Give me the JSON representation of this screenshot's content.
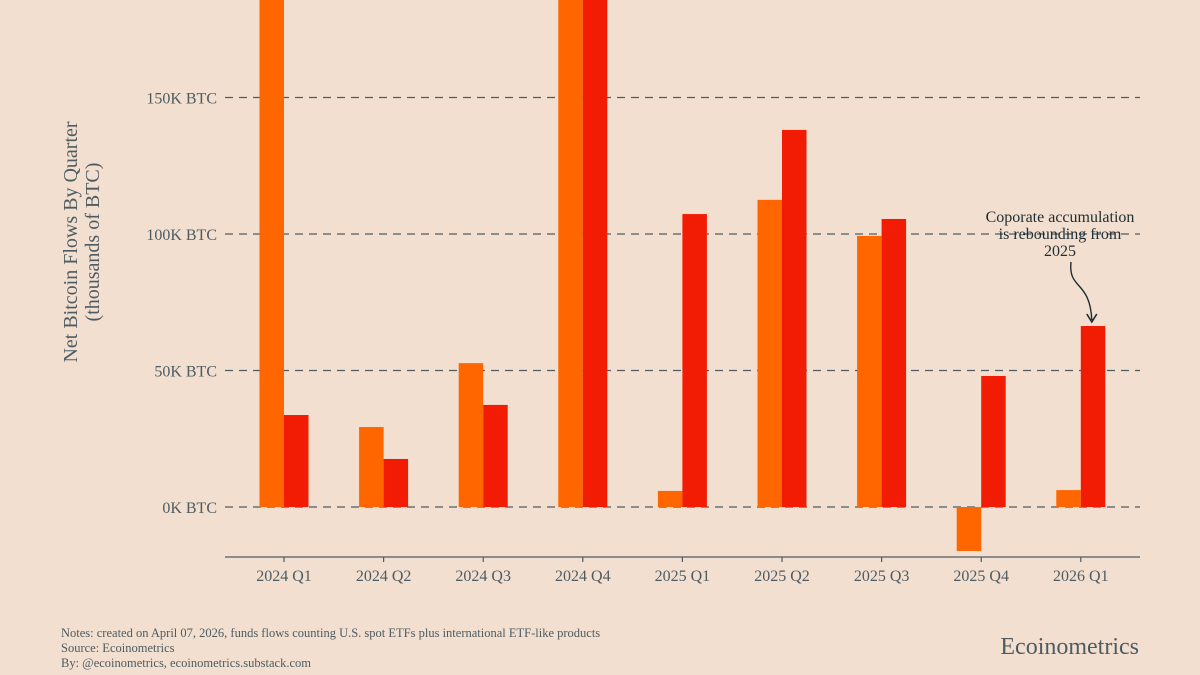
{
  "chart_data": {
    "type": "bar",
    "title": "",
    "ylabel": "Net Bitcoin Flows By Quarter",
    "ylabel_sub": "(thousands of BTC)",
    "xlabel": "",
    "categories": [
      "2024 Q1",
      "2024 Q2",
      "2024 Q3",
      "2024 Q4",
      "2025 Q1",
      "2025 Q2",
      "2025 Q3",
      "2025 Q4",
      "2026 Q1"
    ],
    "series": [
      {
        "color": "#ff6600",
        "values": [
          195,
          29.3,
          52.7,
          195,
          5.9,
          112.5,
          99.3,
          -16.1,
          6.2
        ]
      },
      {
        "color": "#f21c05",
        "values": [
          33.7,
          17.6,
          37.4,
          195,
          107.3,
          138.1,
          105.5,
          48.0,
          66.3
        ]
      }
    ],
    "yticks": [
      0,
      50,
      100,
      150
    ],
    "ytick_labels": [
      "0K BTC",
      "50K BTC",
      "100K BTC",
      "150K BTC"
    ],
    "ylim": [
      -18.3,
      185.7
    ],
    "grid": "horizontal dashed",
    "legend": "none",
    "annotation": {
      "lines": [
        "Coporate accumulation",
        "is rebounding from",
        "2025"
      ],
      "target_category": "2026 Q1"
    }
  },
  "footer": {
    "notes": "Notes: created on April 07, 2026, funds flows counting U.S. spot ETFs plus international ETF-like products",
    "source": "Source: Ecoinometrics",
    "by": "By: @ecoinometrics, ecoinometrics.substack.com",
    "brand": "Ecoinometrics"
  }
}
